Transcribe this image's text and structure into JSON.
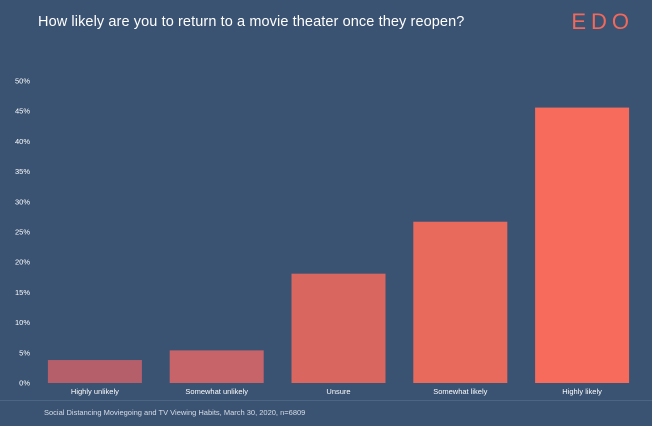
{
  "header": {
    "title": "How likely are you to return to a movie theater once they reopen?",
    "logo": "EDO"
  },
  "footer": {
    "source": "Social Distancing Moviegoing and TV Viewing Habits, March 30, 2020, n=6809"
  },
  "colors": {
    "background": "#3b5372",
    "brand": "#f2685a",
    "bars": [
      "#b55f6b",
      "#c6646a",
      "#d9665f",
      "#e86a5c",
      "#f66b5b"
    ]
  },
  "chart_data": {
    "type": "bar",
    "categories": [
      "Highly unlikely",
      "Somewhat unlikely",
      "Unsure",
      "Somewhat likely",
      "Highly likely"
    ],
    "values": [
      3.8,
      5.4,
      18.1,
      26.7,
      45.6
    ],
    "yticks": [
      "0%",
      "5%",
      "10%",
      "15%",
      "20%",
      "25%",
      "30%",
      "35%",
      "40%",
      "45%",
      "50%"
    ],
    "ylim": [
      0,
      50
    ],
    "grid": false
  }
}
